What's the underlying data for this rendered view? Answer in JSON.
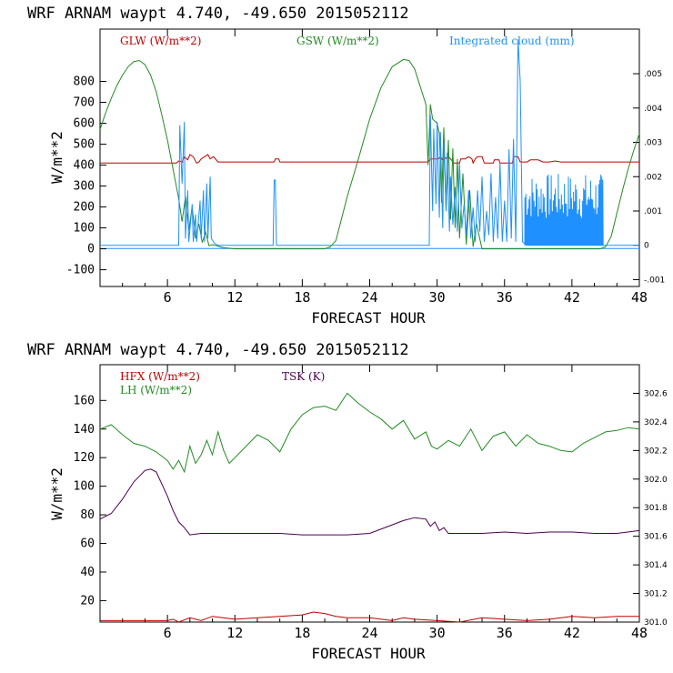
{
  "colors": {
    "glw": "#c00000",
    "gsw": "#228b22",
    "cloud": "#1e90ff",
    "hfx": "#c00000",
    "lh": "#228b22",
    "tsk": "#4b0050"
  },
  "chart_data": [
    {
      "type": "line",
      "title": "WRF   ARNAM waypt     4.740, -49.650  2015052112",
      "xlabel": "FORECAST HOUR",
      "ylabel": "W/m**2",
      "xlim": [
        0,
        48
      ],
      "ylim": [
        -180,
        1050
      ],
      "xticks": [
        "6",
        "12",
        "18",
        "24",
        "30",
        "36",
        "42",
        "48"
      ],
      "yticks": [
        "-100",
        "0",
        "100",
        "200",
        "300",
        "400",
        "500",
        "600",
        "700",
        "800"
      ],
      "y2lim": [
        -0.0012,
        0.0063
      ],
      "y2ticks": [
        ".005",
        ".004",
        ".003",
        ".002",
        ".001",
        "0",
        "-.001"
      ],
      "series": [
        {
          "name": "GLW (W/m**2)",
          "axis": "left",
          "color": "glw",
          "x": [
            0,
            6.8,
            7.0,
            7.3,
            7.5,
            7.8,
            8.0,
            8.3,
            8.6,
            8.8,
            9.0,
            9.3,
            9.6,
            9.8,
            10.1,
            10.5,
            15.5,
            15.6,
            15.9,
            16.0,
            29.2,
            29.4,
            30.1,
            30.3,
            30.5,
            31.0,
            31.2,
            31.5,
            32.0,
            32.1,
            32.5,
            32.8,
            33.1,
            33.2,
            33.4,
            33.6,
            34.0,
            34.2,
            35.0,
            35.1,
            35.5,
            35.6,
            36.7,
            36.8,
            37.2,
            37.4,
            38,
            38.3,
            39,
            39.4,
            40,
            40.5,
            41,
            48
          ],
          "y": [
            410,
            410,
            420,
            415,
            440,
            425,
            450,
            440,
            410,
            415,
            430,
            440,
            450,
            430,
            440,
            415,
            415,
            430,
            430,
            415,
            415,
            430,
            430,
            440,
            425,
            440,
            430,
            410,
            410,
            430,
            430,
            440,
            430,
            410,
            430,
            440,
            440,
            410,
            410,
            425,
            425,
            410,
            410,
            440,
            440,
            415,
            415,
            425,
            425,
            415,
            415,
            420,
            415,
            415
          ]
        },
        {
          "name": "GSW (W/m**2)",
          "axis": "left",
          "color": "gsw",
          "x": [
            0,
            0.5,
            1,
            1.5,
            2,
            2.5,
            3,
            3.5,
            4,
            4.5,
            5,
            5.5,
            6,
            6.5,
            7,
            7.3,
            7.6,
            7.9,
            8.2,
            8.5,
            8.8,
            9.1,
            9.4,
            9.7,
            10,
            11,
            12,
            13,
            14,
            15,
            16,
            17,
            18,
            19,
            20,
            20.5,
            21,
            22,
            23,
            24,
            25,
            26,
            27,
            27.5,
            28,
            29,
            29.2,
            29.4,
            29.6,
            30,
            30.2,
            30.4,
            30.6,
            30.8,
            31,
            31.2,
            31.4,
            31.6,
            31.8,
            32,
            32.3,
            32.6,
            32.9,
            33.2,
            33.5,
            34,
            35,
            36,
            37,
            38,
            39,
            40,
            41,
            42,
            43,
            44,
            44.5,
            45,
            45.5,
            46,
            46.5,
            47,
            47.5,
            48
          ],
          "y": [
            570,
            650,
            720,
            780,
            830,
            870,
            895,
            900,
            880,
            830,
            750,
            640,
            520,
            380,
            240,
            130,
            250,
            90,
            200,
            50,
            120,
            30,
            80,
            15,
            20,
            5,
            0,
            0,
            0,
            0,
            0,
            0,
            0,
            0,
            0,
            10,
            40,
            250,
            430,
            620,
            770,
            870,
            905,
            900,
            860,
            690,
            400,
            690,
            620,
            600,
            550,
            220,
            580,
            180,
            520,
            140,
            480,
            100,
            430,
            50,
            360,
            20,
            280,
            10,
            120,
            0,
            0,
            0,
            0,
            0,
            0,
            0,
            0,
            0,
            0,
            0,
            0,
            10,
            60,
            170,
            280,
            380,
            470,
            550
          ]
        },
        {
          "name": "Integrated cloud (mm)",
          "axis": "right",
          "color": "cloud",
          "x": [
            0,
            7.0,
            7.1,
            7.3,
            7.5,
            7.6,
            7.8,
            7.9,
            8.2,
            8.3,
            8.5,
            8.6,
            8.9,
            9.0,
            9.2,
            9.3,
            9.5,
            9.6,
            9.8,
            9.9,
            10.1,
            10.2,
            10.5,
            11,
            15.4,
            15.5,
            15.6,
            15.7,
            29.3,
            29.4,
            29.6,
            29.7,
            29.9,
            30.0,
            30.2,
            30.3,
            30.5,
            30.6,
            30.8,
            30.9,
            31.1,
            31.2,
            31.4,
            31.6,
            31.8,
            32.0,
            32.2,
            32.4,
            32.6,
            32.8,
            33.0,
            33.2,
            33.4,
            33.6,
            33.8,
            34.0,
            34.2,
            34.4,
            34.6,
            34.8,
            35.0,
            35.2,
            35.4,
            35.6,
            35.8,
            36.0,
            36.2,
            36.4,
            36.6,
            36.8,
            37.0,
            37.2,
            37.4,
            37.6,
            38,
            44.5,
            48
          ],
          "y": [
            0,
            0,
            0.0035,
            0.0018,
            0.0036,
            0.0002,
            0.0016,
            0.0001,
            0.0012,
            0.0001,
            0.0009,
            0.0001,
            0.0013,
            0.0002,
            0.0016,
            0.0001,
            0.0018,
            0.0002,
            0.002,
            0.0002,
            0.0001,
            5e-05,
            0.0,
            0.0,
            0.0,
            0.0019,
            0.0019,
            0.0,
            0.0,
            0.0038,
            0.001,
            0.0034,
            0.0012,
            0.0036,
            0.0008,
            0.0033,
            0.0005,
            0.003,
            0.001,
            0.0027,
            0.0004,
            0.002,
            0.0006,
            0.0017,
            0.0004,
            0.0024,
            0.0005,
            0.0012,
            0.0003,
            0.0016,
            0.0002,
            0.0011,
            0.0001,
            0.0016,
            0.0004,
            0.002,
            0.0001,
            0.001,
            0.0003,
            0.0021,
            0.0001,
            0.0014,
            0.0002,
            0.0024,
            0.0001,
            0.0013,
            0.0001,
            0.0028,
            0.0002,
            0.0031,
            0.0001,
            0.006,
            0.0048,
            0.0001,
            0.0,
            0.0,
            0.0
          ]
        },
        {
          "name": "Integrated cloud dense bursts",
          "axis": "right",
          "color": "cloud",
          "type": "spikes",
          "x_range": [
            37.8,
            44.8
          ],
          "approx_peak": 0.0021
        }
      ],
      "legend": [
        "GLW (W/m**2)",
        "GSW (W/m**2)",
        "Integrated cloud (mm)"
      ]
    },
    {
      "type": "line",
      "title": "WRF   ARNAM waypt     4.740, -49.650  2015052112",
      "xlabel": "FORECAST HOUR",
      "ylabel": "W/m**2",
      "xlim": [
        0,
        48
      ],
      "ylim": [
        5,
        185
      ],
      "xticks": [
        "6",
        "12",
        "18",
        "24",
        "30",
        "36",
        "42",
        "48"
      ],
      "yticks": [
        "20",
        "40",
        "60",
        "80",
        "100",
        "120",
        "140",
        "160"
      ],
      "y2lim": [
        301.0,
        302.8
      ],
      "y2ticks": [
        "302.6",
        "302.4",
        "302.2",
        "302.0",
        "301.8",
        "301.6",
        "301.4",
        "301.2",
        "301.0"
      ],
      "series": [
        {
          "name": "HFX (W/m**2)",
          "axis": "left",
          "color": "hfx",
          "x": [
            0,
            2,
            4,
            6,
            6.5,
            7,
            8,
            9,
            10,
            12,
            14,
            16,
            18,
            19,
            20,
            21,
            22,
            24,
            26,
            27,
            28,
            30,
            32,
            34,
            36,
            38,
            40,
            42,
            44,
            46,
            48
          ],
          "y": [
            6,
            6,
            6,
            6,
            7,
            5,
            8,
            6,
            9,
            7,
            8,
            9,
            10,
            12,
            11,
            9,
            8,
            8,
            6,
            8,
            7,
            6,
            5,
            8,
            7,
            6,
            7,
            9,
            8,
            9,
            9
          ]
        },
        {
          "name": "LH (W/m**2)",
          "axis": "left",
          "color": "lh",
          "x": [
            0,
            1,
            2,
            3,
            4,
            5,
            6,
            6.5,
            7,
            7.5,
            8,
            8.5,
            9,
            9.5,
            10,
            10.5,
            11,
            11.5,
            12,
            13,
            14,
            15,
            16,
            17,
            18,
            19,
            20,
            21,
            22,
            23,
            24,
            25,
            26,
            27,
            28,
            29,
            29.5,
            30,
            31,
            32,
            33,
            34,
            35,
            36,
            37,
            38,
            39,
            40,
            41,
            42,
            43,
            44,
            45,
            46,
            47,
            48
          ],
          "y": [
            140,
            143,
            136,
            130,
            128,
            124,
            118,
            112,
            118,
            110,
            128,
            116,
            122,
            132,
            122,
            138,
            125,
            116,
            120,
            128,
            136,
            132,
            124,
            140,
            150,
            155,
            156,
            153,
            165,
            158,
            152,
            147,
            140,
            146,
            133,
            138,
            128,
            126,
            132,
            128,
            140,
            125,
            135,
            138,
            128,
            136,
            130,
            128,
            125,
            124,
            130,
            134,
            138,
            139,
            141,
            140
          ]
        },
        {
          "name": "TSK (K)",
          "axis": "right",
          "color": "tsk",
          "x": [
            0,
            1,
            2,
            3,
            4,
            4.5,
            5,
            6,
            6.5,
            7,
            7.5,
            8,
            9,
            10,
            12,
            14,
            16,
            18,
            20,
            22,
            24,
            26,
            27,
            28,
            29,
            29.4,
            29.8,
            30.2,
            30.6,
            31,
            32,
            34,
            36,
            38,
            40,
            42,
            44,
            46,
            48
          ],
          "y": [
            301.72,
            301.76,
            301.86,
            301.98,
            302.06,
            302.07,
            302.05,
            301.88,
            301.78,
            301.7,
            301.66,
            301.61,
            301.62,
            301.62,
            301.62,
            301.62,
            301.62,
            301.61,
            301.61,
            301.61,
            301.62,
            301.68,
            301.71,
            301.73,
            301.72,
            301.67,
            301.7,
            301.64,
            301.66,
            301.62,
            301.62,
            301.62,
            301.63,
            301.62,
            301.63,
            301.63,
            301.62,
            301.62,
            301.64
          ]
        }
      ],
      "legend": [
        "HFX (W/m**2)",
        "LH (W/m**2)",
        "TSK (K)"
      ]
    }
  ]
}
